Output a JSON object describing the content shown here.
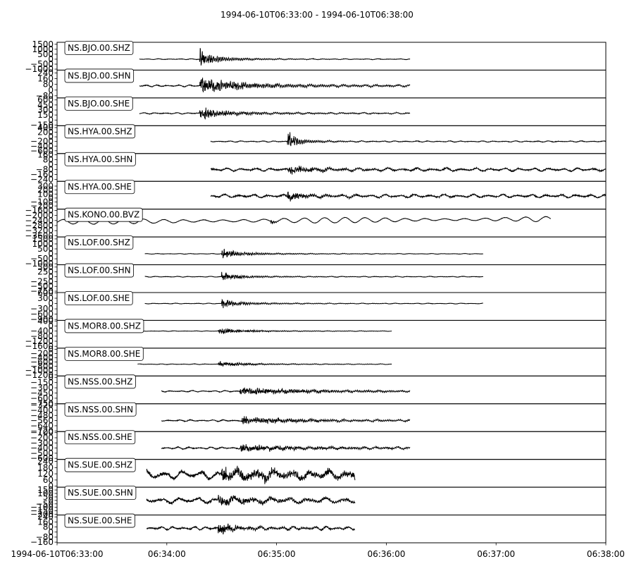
{
  "chart_data": {
    "type": "line",
    "title": "1994-06-10T06:33:00  -  1994-06-10T06:38:00",
    "x_range": [
      "1994-06-10T06:33:00",
      "1994-06-10T06:38:00"
    ],
    "x_ticks": [
      {
        "t": 0,
        "label": "1994-06-10T06:33:00"
      },
      {
        "t": 60,
        "label": "06:34:00"
      },
      {
        "t": 120,
        "label": "06:35:00"
      },
      {
        "t": 180,
        "label": "06:36:00"
      },
      {
        "t": 240,
        "label": "06:37:00"
      },
      {
        "t": 300,
        "label": "06:38:00"
      }
    ],
    "line_color": "#000000",
    "grid": false,
    "traces": [
      {
        "name": "NS.BJO.00.SHZ",
        "ylim": [
          -1100,
          1700
        ],
        "ticks": [
          "1500",
          "1000",
          "500",
          "0",
          "−500",
          "−1000"
        ],
        "tickvals": [
          1500,
          1000,
          500,
          0,
          -500,
          -1000
        ],
        "start": 45,
        "end": 193,
        "pick": 78,
        "base": 0,
        "noise": 40,
        "amp": 1000,
        "decay": 6,
        "long": 0,
        "per": 6
      },
      {
        "name": "NS.BJO.00.SHN",
        "ylim": [
          -110,
          280
        ],
        "ticks": [
          "240",
          "160",
          "80",
          "0",
          "−80"
        ],
        "tickvals": [
          240,
          160,
          80,
          0,
          -80
        ],
        "start": 45,
        "end": 193,
        "pick": 78,
        "base": 60,
        "noise": 12,
        "amp": 130,
        "decay": 18,
        "long": 0,
        "per": 6
      },
      {
        "name": "NS.BJO.00.SHE",
        "ylim": [
          -170,
          660
        ],
        "ticks": [
          "600",
          "450",
          "300",
          "150",
          "0",
          "−150"
        ],
        "tickvals": [
          600,
          450,
          300,
          150,
          0,
          -150
        ],
        "start": 45,
        "end": 193,
        "pick": 78,
        "base": 200,
        "noise": 20,
        "amp": 200,
        "decay": 12,
        "long": 0,
        "per": 6
      },
      {
        "name": "NS.HYA.00.SHZ",
        "ylim": [
          -720,
          480
        ],
        "ticks": [
          "400",
          "200",
          "0",
          "−200",
          "−400",
          "−600"
        ],
        "tickvals": [
          400,
          200,
          0,
          -200,
          -400,
          -600
        ],
        "start": 84,
        "end": 300,
        "pick": 126,
        "base": -200,
        "noise": 25,
        "amp": 450,
        "decay": 4,
        "long": 0,
        "per": 6
      },
      {
        "name": "NS.HYA.00.SHN",
        "ylim": [
          -270,
          180
        ],
        "ticks": [
          "160",
          "80",
          "0",
          "−80",
          "−160",
          "−240"
        ],
        "tickvals": [
          160,
          80,
          0,
          -80,
          -160,
          -240
        ],
        "start": 84,
        "end": 300,
        "pick": 126,
        "base": -80,
        "noise": 25,
        "amp": 90,
        "decay": 10,
        "long": 0,
        "per": 8
      },
      {
        "name": "NS.HYA.00.SHE",
        "ylim": [
          -280,
          420
        ],
        "ticks": [
          "300",
          "200",
          "100",
          "0",
          "−100",
          "−200"
        ],
        "tickvals": [
          300,
          200,
          100,
          0,
          -100,
          -200
        ],
        "start": 84,
        "end": 300,
        "pick": 126,
        "base": 50,
        "noise": 40,
        "amp": 150,
        "decay": 8,
        "long": 0,
        "per": 8
      },
      {
        "name": "NS.KONO.00.BVZ",
        "ylim": [
          -3700,
          -1500
        ],
        "ticks": [
          "−1600",
          "−2000",
          "−2400",
          "−2800",
          "−3200",
          "−3600"
        ],
        "tickvals": [
          -1600,
          -2000,
          -2400,
          -2800,
          -3200,
          -3600
        ],
        "start": 0,
        "end": 270,
        "pick": 117,
        "base": -2500,
        "noise": 30,
        "amp": 300,
        "decay": 1,
        "long": 200,
        "per": 12
      },
      {
        "name": "NS.LOF.00.SHZ",
        "ylim": [
          -1100,
          1700
        ],
        "ticks": [
          "1500",
          "1000",
          "500",
          "0",
          "−500",
          "−1000"
        ],
        "tickvals": [
          1500,
          1000,
          500,
          0,
          -500,
          -1000
        ],
        "start": 48,
        "end": 233,
        "pick": 90,
        "base": 0,
        "noise": 30,
        "amp": 600,
        "decay": 8,
        "long": 0,
        "per": 6
      },
      {
        "name": "NS.LOF.00.SHN",
        "ylim": [
          -820,
          620
        ],
        "ticks": [
          "500",
          "250",
          "0",
          "−250",
          "−500",
          "−750"
        ],
        "tickvals": [
          500,
          250,
          0,
          -250,
          -500,
          -750
        ],
        "start": 48,
        "end": 233,
        "pick": 90,
        "base": 0,
        "noise": 20,
        "amp": 250,
        "decay": 8,
        "long": 0,
        "per": 6
      },
      {
        "name": "NS.LOF.00.SHE",
        "ylim": [
          -950,
          620
        ],
        "ticks": [
          "600",
          "300",
          "0",
          "−300",
          "−600",
          "−900"
        ],
        "tickvals": [
          600,
          300,
          0,
          -300,
          -600,
          -900
        ],
        "start": 48,
        "end": 233,
        "pick": 90,
        "base": 0,
        "noise": 20,
        "amp": 300,
        "decay": 8,
        "long": 0,
        "per": 6
      },
      {
        "name": "NS.MOR8.00.SHZ",
        "ylim": [
          -1750,
          450
        ],
        "ticks": [
          "400",
          "0",
          "−400",
          "−800",
          "−1200",
          "−1600"
        ],
        "tickvals": [
          400,
          0,
          -400,
          -800,
          -1200,
          -1600
        ],
        "start": 44,
        "end": 183,
        "pick": 88,
        "base": -400,
        "noise": 20,
        "amp": 250,
        "decay": 12,
        "long": 0,
        "per": 6
      },
      {
        "name": "NS.MOR8.00.SHE",
        "ylim": [
          -1250,
          50
        ],
        "ticks": [
          "0",
          "−200",
          "−400",
          "−600",
          "−800",
          "−1000",
          "−1200"
        ],
        "tickvals": [
          0,
          -200,
          -400,
          -600,
          -800,
          -1000,
          -1200
        ],
        "start": 44,
        "end": 183,
        "pick": 88,
        "base": -700,
        "noise": 15,
        "amp": 150,
        "decay": 12,
        "long": 0,
        "per": 6
      },
      {
        "name": "NS.NSS.00.SHZ",
        "ylim": [
          -760,
          40
        ],
        "ticks": [
          "0",
          "−150",
          "−300",
          "−450",
          "−600",
          "−750"
        ],
        "tickvals": [
          0,
          -150,
          -300,
          -450,
          -600,
          -750
        ],
        "start": 57,
        "end": 193,
        "pick": 100,
        "base": -400,
        "noise": 20,
        "amp": 130,
        "decay": 30,
        "long": 0,
        "per": 6
      },
      {
        "name": "NS.NSS.00.SHN",
        "ylim": [
          -730,
          -300
        ],
        "ticks": [
          "−320",
          "−400",
          "−480",
          "−560",
          "−640",
          "−720"
        ],
        "tickvals": [
          -320,
          -400,
          -480,
          -560,
          -640,
          -720
        ],
        "start": 57,
        "end": 193,
        "pick": 101,
        "base": -560,
        "noise": 12,
        "amp": 60,
        "decay": 30,
        "long": 0,
        "per": 6
      },
      {
        "name": "NS.NSS.00.SHE",
        "ylim": [
          -620,
          -80
        ],
        "ticks": [
          "−100",
          "−200",
          "−300",
          "−400",
          "−500",
          "−600"
        ],
        "tickvals": [
          -100,
          -200,
          -300,
          -400,
          -500,
          -600
        ],
        "start": 57,
        "end": 193,
        "pick": 100,
        "base": -400,
        "noise": 20,
        "amp": 80,
        "decay": 30,
        "long": 0,
        "per": 6
      },
      {
        "name": "NS.SUE.00.SHZ",
        "ylim": [
          -10,
          260
        ],
        "ticks": [
          "240",
          "180",
          "120",
          "60",
          "0"
        ],
        "tickvals": [
          240,
          180,
          120,
          60,
          0
        ],
        "start": 49,
        "end": 163,
        "pick": 90,
        "base": 110,
        "noise": 40,
        "amp": 60,
        "decay": 60,
        "long": 0,
        "per": 10
      },
      {
        "name": "NS.SUE.00.SHN",
        "ylim": [
          -210,
          190
        ],
        "ticks": [
          "150",
          "100",
          "50",
          "0",
          "−50",
          "−100",
          "−150",
          "−200"
        ],
        "tickvals": [
          150,
          100,
          50,
          0,
          -50,
          -100,
          -150,
          -200
        ],
        "start": 49,
        "end": 163,
        "pick": 88,
        "base": 0,
        "noise": 40,
        "amp": 80,
        "decay": 20,
        "long": 0,
        "per": 10
      },
      {
        "name": "NS.SUE.00.SHE",
        "ylim": [
          -170,
          270
        ],
        "ticks": [
          "240",
          "160",
          "80",
          "0",
          "−80",
          "−160"
        ],
        "tickvals": [
          240,
          160,
          80,
          0,
          -80,
          -160
        ],
        "start": 49,
        "end": 163,
        "pick": 88,
        "base": 60,
        "noise": 25,
        "amp": 90,
        "decay": 10,
        "long": 0,
        "per": 6
      }
    ]
  }
}
